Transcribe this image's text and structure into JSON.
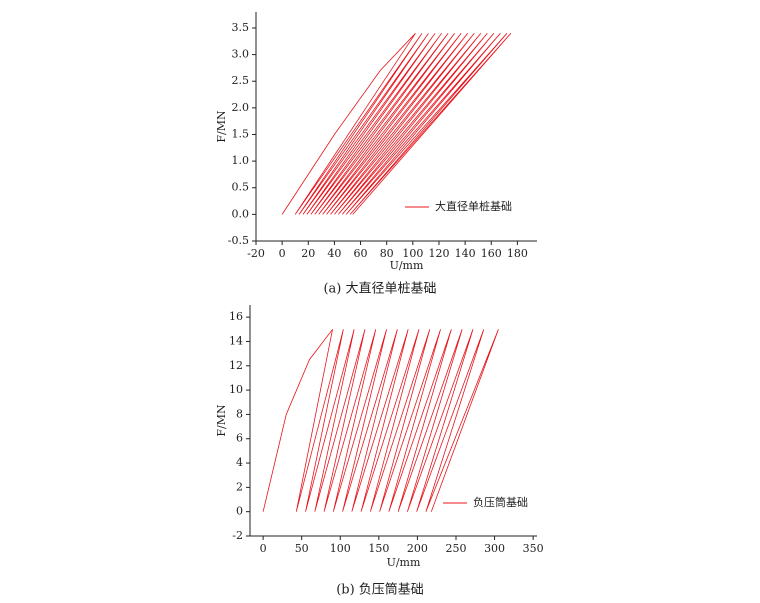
{
  "chart_data": [
    {
      "type": "line",
      "x_label": "U/mm",
      "y_label": "F/MN",
      "caption": "(a) 大直径单桩基础",
      "xlim": [
        -20,
        195
      ],
      "ylim": [
        -0.5,
        3.8
      ],
      "xticks": [
        -20,
        0,
        20,
        40,
        60,
        80,
        100,
        120,
        140,
        160,
        180
      ],
      "yticks": [
        -0.5,
        {
          "value": 0,
          "label": "0.0"
        },
        0.5,
        {
          "value": 1,
          "label": "1.0"
        },
        1.5,
        {
          "value": 2,
          "label": "2.0"
        },
        2.5,
        {
          "value": 3,
          "label": "3.0"
        },
        3.5
      ],
      "series": [
        {
          "name": "大直径单桩基础",
          "color": "#e8141c",
          "x": [
            0,
            40,
            75,
            102,
            10,
            107,
            13,
            112,
            16,
            117,
            19,
            122,
            22,
            127,
            25,
            132,
            28,
            137,
            31,
            142,
            34,
            147,
            37,
            152,
            40,
            157,
            43,
            162,
            46,
            167,
            49,
            172,
            52,
            175,
            54
          ],
          "y": [
            0,
            1.5,
            2.7,
            3.4,
            0,
            3.4,
            0,
            3.4,
            0,
            3.4,
            0,
            3.4,
            0,
            3.4,
            0,
            3.4,
            0,
            3.4,
            0,
            3.4,
            0,
            3.4,
            0,
            3.4,
            0,
            3.4,
            0,
            3.4,
            0,
            3.4,
            0,
            3.4,
            0,
            3.4,
            0
          ]
        }
      ]
    },
    {
      "type": "line",
      "x_label": "U/mm",
      "y_label": "F/MN",
      "caption": "(b) 负压筒基础",
      "xlim": [
        -17,
        355
      ],
      "ylim": [
        -2,
        17
      ],
      "xticks": [
        0,
        50,
        100,
        150,
        200,
        250,
        300,
        350
      ],
      "yticks": [
        -2,
        0,
        2,
        4,
        6,
        8,
        10,
        12,
        14,
        16
      ],
      "series": [
        {
          "name": "负压筒基础",
          "color": "#e8141c",
          "x": [
            0,
            30,
            60,
            90,
            43,
            104,
            55,
            118,
            67,
            132,
            79,
            146,
            91,
            160,
            103,
            174,
            115,
            188,
            127,
            202,
            139,
            216,
            151,
            230,
            163,
            244,
            175,
            258,
            187,
            272,
            199,
            286,
            211,
            305,
            218
          ],
          "y": [
            0,
            8,
            12.5,
            15,
            0,
            15,
            0,
            15,
            0,
            15,
            0,
            15,
            0,
            15,
            0,
            15,
            0,
            15,
            0,
            15,
            0,
            15,
            0,
            15,
            0,
            15,
            0,
            15,
            0,
            15,
            0,
            15,
            0,
            15,
            0
          ]
        }
      ]
    }
  ]
}
